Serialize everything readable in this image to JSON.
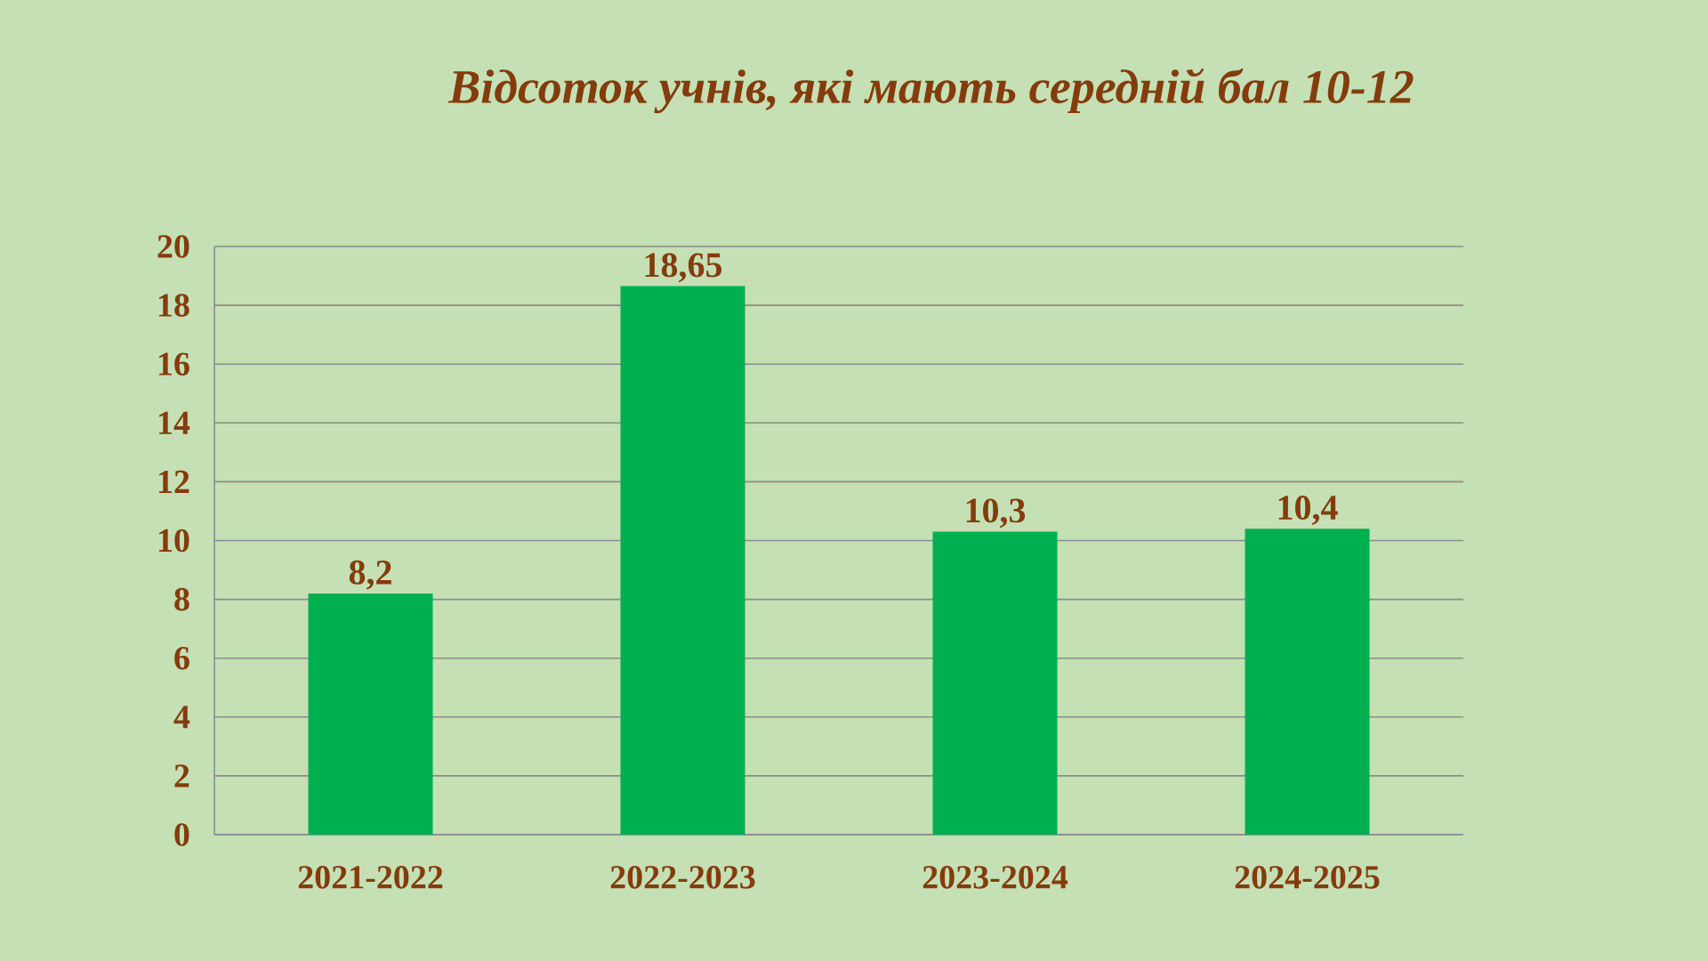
{
  "chart_data": {
    "type": "bar",
    "title": "Відсоток учнів, які мають середній бал 10-12",
    "categories": [
      "2021-2022",
      "2022-2023",
      "2023-2024",
      "2024-2025"
    ],
    "values": [
      8.2,
      18.65,
      10.3,
      10.4
    ],
    "value_labels": [
      "8,2",
      "18,65",
      "10,3",
      "10,4"
    ],
    "color": "#00b050",
    "ylim": [
      0,
      20
    ],
    "yticks": [
      0,
      2,
      4,
      6,
      8,
      10,
      12,
      14,
      16,
      18,
      20
    ],
    "grid": "y"
  }
}
